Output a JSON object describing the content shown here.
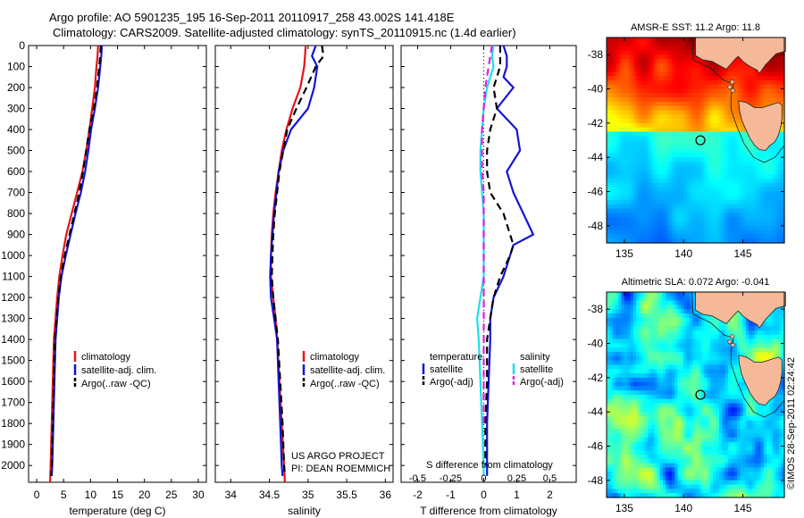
{
  "title": {
    "line1": "Argo profile: AO 5901235_195 16-Sep-2011 20110917_258 43.002S 141.418E",
    "line2": "Climatology: CARS2009. Satellite-adjusted climatology: synTS_20110915.nc (1.4d earlier)"
  },
  "credit": {
    "line1": "US ARGO PROJECT",
    "line2": "PI: DEAN ROEMMICH"
  },
  "stamp": "©IMOS 28-Sep-2011 02:24:42",
  "colors": {
    "climatology": "#e8121b",
    "satellite": "#1414d2",
    "argo": "#000000",
    "sal_satellite": "#1ae0ee",
    "sal_argo": "#e21ee0",
    "land": "#f5b99a",
    "coast": "#222222"
  },
  "chart_data": [
    {
      "id": "temperature",
      "type": "line",
      "xlabel": "temperature (deg C)",
      "ylabel": "",
      "xlim": [
        -1.5,
        31.5
      ],
      "ylim": [
        2080,
        0
      ],
      "xticks": [
        0,
        5,
        10,
        15,
        20,
        25,
        30
      ],
      "yticks": [
        0,
        100,
        200,
        300,
        400,
        500,
        600,
        700,
        800,
        900,
        1000,
        1100,
        1200,
        1300,
        1400,
        1500,
        1600,
        1700,
        1800,
        1900,
        2000
      ],
      "legend": [
        "climatology",
        "satellite-adj. clim.",
        "Argo(..raw -QC)"
      ],
      "series": [
        {
          "name": "climatology",
          "style": "solid",
          "color": "#e8121b",
          "x": [
            11.4,
            11.3,
            11.1,
            10.8,
            10.3,
            9.8,
            9.2,
            8.5,
            7.5,
            6.5,
            5.5,
            4.8,
            4.2,
            3.8,
            3.5,
            3.2,
            3.0,
            2.8,
            2.6,
            2.5
          ],
          "y": [
            0,
            50,
            100,
            200,
            300,
            400,
            500,
            600,
            700,
            800,
            900,
            1000,
            1100,
            1200,
            1300,
            1400,
            1600,
            1800,
            2000,
            2080
          ]
        },
        {
          "name": "satellite-adj. clim.",
          "style": "solid",
          "color": "#1414d2",
          "x": [
            12.1,
            12.0,
            11.8,
            11.4,
            10.8,
            10.1,
            9.6,
            9.0,
            8.2,
            7.2,
            6.3,
            5.4,
            4.6,
            4.1,
            3.8,
            3.5,
            3.3,
            3.1,
            2.9,
            2.8
          ],
          "y": [
            0,
            50,
            100,
            200,
            300,
            400,
            500,
            600,
            700,
            800,
            900,
            1000,
            1100,
            1200,
            1300,
            1400,
            1600,
            1800,
            2000,
            2050
          ]
        },
        {
          "name": "Argo(..raw -QC)",
          "style": "dashed",
          "color": "#000000",
          "x": [
            11.9,
            11.8,
            11.6,
            11.2,
            10.6,
            9.8,
            9.2,
            8.6,
            7.9,
            7.0,
            6.1,
            5.2,
            4.5,
            4.0,
            3.7,
            3.4,
            3.2,
            3.0,
            2.8,
            2.7
          ],
          "y": [
            0,
            50,
            100,
            200,
            300,
            400,
            500,
            600,
            700,
            800,
            900,
            1000,
            1100,
            1200,
            1300,
            1400,
            1600,
            1800,
            2000,
            2050
          ]
        }
      ]
    },
    {
      "id": "salinity",
      "type": "line",
      "xlabel": "salinity",
      "ylabel": "",
      "xlim": [
        33.8,
        36.1
      ],
      "ylim": [
        2080,
        0
      ],
      "xticks": [
        34,
        34.5,
        35,
        35.5,
        36
      ],
      "xticklabels": [
        "34",
        "34.5",
        "35",
        "35.5",
        "36"
      ],
      "legend": [
        "climatology",
        "satellite-adj. clim.",
        "Argo(..raw -QC)"
      ],
      "series": [
        {
          "name": "climatology",
          "style": "solid",
          "color": "#e8121b",
          "x": [
            34.97,
            34.96,
            34.95,
            34.9,
            34.8,
            34.72,
            34.66,
            34.62,
            34.58,
            34.55,
            34.53,
            34.52,
            34.52,
            34.55,
            34.58,
            34.6,
            34.63,
            34.66,
            34.69,
            34.7
          ],
          "y": [
            0,
            50,
            100,
            200,
            300,
            400,
            500,
            600,
            700,
            800,
            900,
            1000,
            1100,
            1200,
            1300,
            1400,
            1600,
            1800,
            2000,
            2080
          ]
        },
        {
          "name": "satellite-adj. clim.",
          "style": "solid",
          "color": "#1414d2",
          "x": [
            35.1,
            35.05,
            35.12,
            35.08,
            35.0,
            34.78,
            34.68,
            34.62,
            34.59,
            34.56,
            34.54,
            34.52,
            34.51,
            34.52,
            34.56,
            34.6,
            34.62,
            34.64,
            34.66,
            34.67
          ],
          "y": [
            0,
            50,
            100,
            200,
            300,
            400,
            500,
            600,
            700,
            800,
            900,
            1000,
            1100,
            1200,
            1300,
            1400,
            1600,
            1800,
            2000,
            2050
          ]
        },
        {
          "name": "Argo(..raw -QC)",
          "style": "dashed",
          "color": "#000000",
          "x": [
            35.18,
            35.2,
            35.1,
            34.98,
            34.85,
            34.73,
            34.68,
            34.63,
            34.6,
            34.57,
            34.55,
            34.54,
            34.53,
            34.55,
            34.58,
            34.61,
            34.64,
            34.67,
            34.69,
            34.7
          ],
          "y": [
            0,
            50,
            100,
            200,
            300,
            400,
            500,
            600,
            700,
            800,
            900,
            1000,
            1100,
            1200,
            1300,
            1400,
            1600,
            1800,
            2000,
            2050
          ]
        }
      ]
    },
    {
      "id": "difference",
      "type": "line",
      "xlabel": "T difference from climatology",
      "x2label": "S difference from climatology",
      "xlim": [
        -2.5,
        2.8
      ],
      "ylim": [
        2080,
        0
      ],
      "xticks": [
        -2,
        -1,
        0,
        1,
        2
      ],
      "x2ticks": [
        -0.5,
        -0.25,
        0,
        0.25,
        0.5
      ],
      "x2ticklabels": [
        "-0.5",
        "-0.25",
        "0",
        "0.25",
        "0.5"
      ],
      "zero_line": true,
      "legend_titles": [
        "temperature",
        "salinity"
      ],
      "legend": [
        "satellite",
        "Argo(-adj)",
        "satellite",
        "Argo(-adj)"
      ],
      "series": [
        {
          "name": "satellite",
          "group": "temperature",
          "style": "solid",
          "color": "#1414d2",
          "x": [
            0.6,
            0.7,
            0.7,
            0.6,
            0.9,
            0.4,
            1.0,
            1.1,
            0.7,
            0.9,
            1.5,
            0.9,
            0.6,
            0.3,
            0.2,
            0.2,
            0.15,
            0.1,
            0.1,
            0.1
          ],
          "y": [
            0,
            50,
            100,
            150,
            200,
            300,
            400,
            500,
            600,
            700,
            900,
            950,
            1100,
            1200,
            1300,
            1400,
            1600,
            1800,
            2000,
            2050
          ]
        },
        {
          "name": "Argo(-adj)",
          "group": "temperature",
          "style": "dashed",
          "color": "#000000",
          "x": [
            0.5,
            0.5,
            0.3,
            0.4,
            0.2,
            0.1,
            0.1,
            0.2,
            0.6,
            0.8,
            0.9,
            0.8,
            0.5,
            0.3,
            0.2,
            0.1,
            0.1,
            0.05,
            0.05
          ],
          "y": [
            0,
            100,
            200,
            300,
            400,
            500,
            600,
            700,
            800,
            900,
            950,
            1000,
            1100,
            1200,
            1300,
            1400,
            1600,
            1800,
            2000
          ]
        },
        {
          "name": "satellite",
          "group": "salinity",
          "style": "solid",
          "color": "#1ae0ee",
          "x": [
            0.3,
            0.25,
            0.3,
            0.1,
            0.0,
            -0.05,
            -0.1,
            -0.1,
            -0.05,
            0.0,
            0.0,
            0.0,
            0.0,
            -0.1,
            -0.2,
            -0.15,
            -0.1,
            -0.05,
            0.0,
            0.0
          ],
          "y": [
            0,
            50,
            100,
            200,
            300,
            400,
            500,
            600,
            700,
            800,
            900,
            1000,
            1100,
            1200,
            1300,
            1400,
            1600,
            1800,
            2000,
            2050
          ]
        },
        {
          "name": "Argo(-adj)",
          "group": "salinity",
          "style": "dashed",
          "color": "#e21ee0",
          "x": [
            0.25,
            0.2,
            0.15,
            0.05,
            0.0,
            -0.05,
            -0.05,
            -0.05,
            0.0,
            0.0,
            0.0,
            0.0,
            0.0,
            0.0,
            0.0,
            0.0,
            0.0
          ],
          "y": [
            0,
            50,
            100,
            200,
            300,
            400,
            500,
            600,
            700,
            800,
            900,
            1000,
            1100,
            1200,
            1400,
            1600,
            1800
          ]
        }
      ]
    },
    {
      "id": "sst_map",
      "type": "heatmap",
      "title": "AMSR-E SST: 11.2 Argo: 11.8",
      "xlim": [
        133.5,
        148.5
      ],
      "ylim": [
        -49,
        -37
      ],
      "xticks": [
        135,
        140,
        145
      ],
      "yticks": [
        -38,
        -40,
        -42,
        -44,
        -46,
        -48
      ],
      "argo_position": {
        "lon": 141.418,
        "lat": -43.002
      },
      "palette": "sst"
    },
    {
      "id": "sla_map",
      "type": "heatmap",
      "title": "Altimetric SLA: 0.072 Argo: -0.041",
      "xlim": [
        133.5,
        148.5
      ],
      "ylim": [
        -49,
        -37
      ],
      "xticks": [
        135,
        140,
        145
      ],
      "yticks": [
        -38,
        -40,
        -42,
        -44,
        -46,
        -48
      ],
      "argo_position": {
        "lon": 141.418,
        "lat": -43.002
      },
      "palette": "sla"
    }
  ]
}
